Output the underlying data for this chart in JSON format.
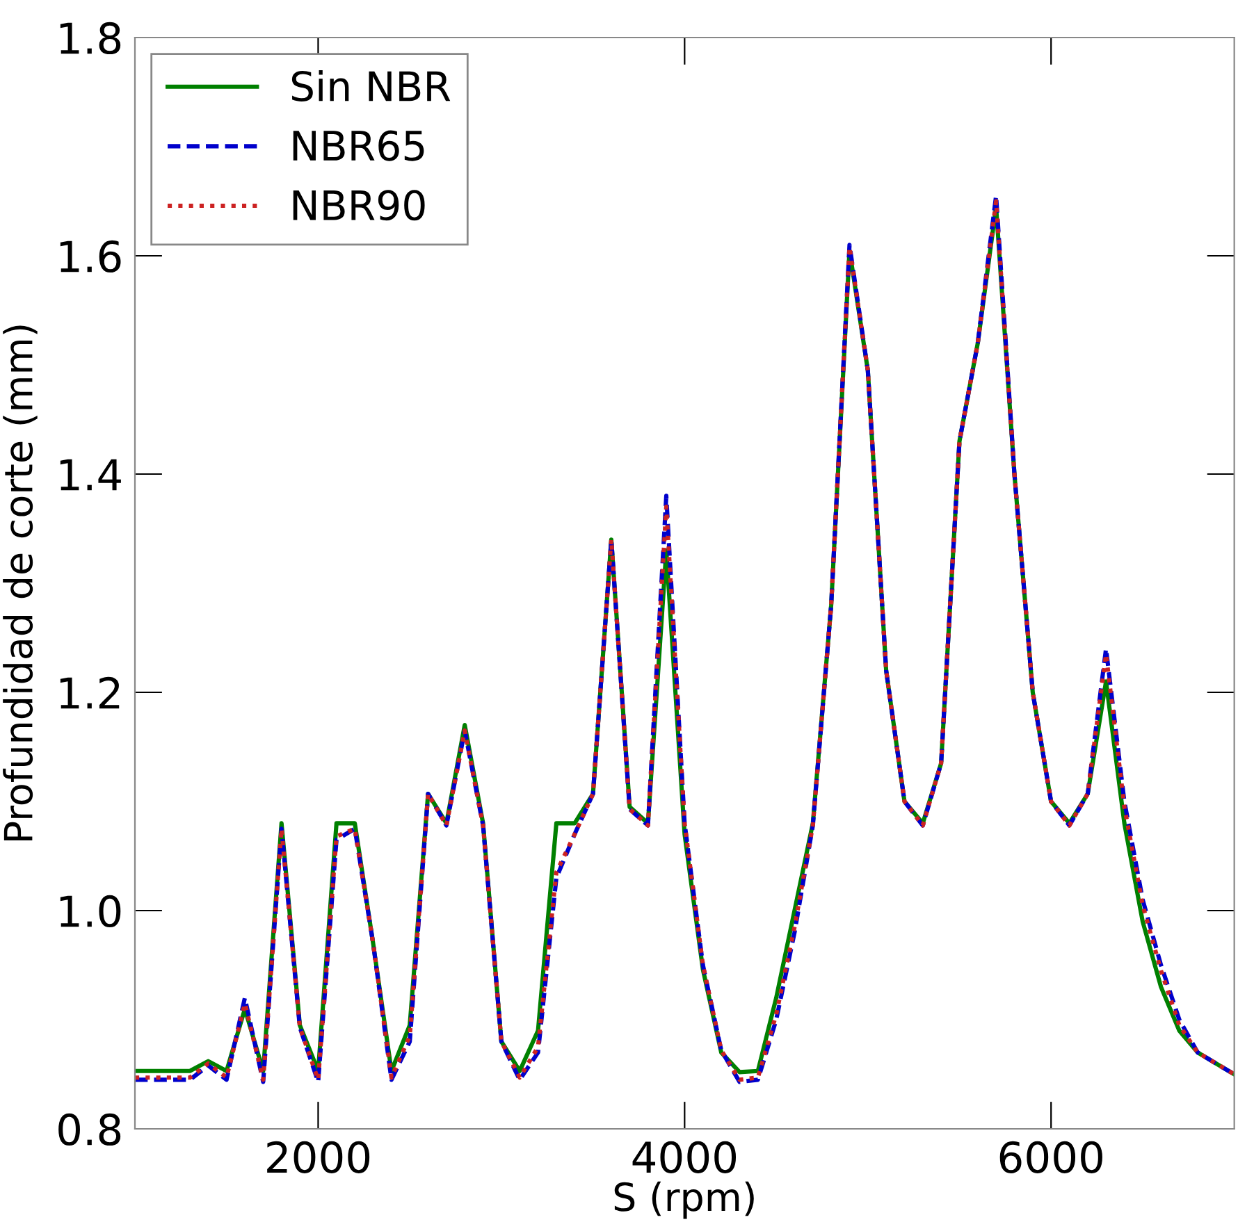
{
  "chart_data": {
    "type": "line",
    "xlabel": "S (rpm)",
    "ylabel": "Profundidad de corte (mm)",
    "x": [
      1000,
      1100,
      1200,
      1300,
      1400,
      1500,
      1600,
      1700,
      1800,
      1900,
      2000,
      2100,
      2200,
      2300,
      2400,
      2500,
      2600,
      2700,
      2800,
      2900,
      3000,
      3100,
      3200,
      3300,
      3400,
      3500,
      3600,
      3700,
      3800,
      3900,
      4000,
      4100,
      4200,
      4300,
      4400,
      4500,
      4600,
      4700,
      4800,
      4900,
      5000,
      5100,
      5200,
      5300,
      5400,
      5500,
      5600,
      5700,
      5800,
      5900,
      6000,
      6100,
      6200,
      6300,
      6400,
      6500,
      6600,
      6700,
      6800,
      6900,
      7000
    ],
    "series": [
      {
        "name": "Sin NBR",
        "color": "#008000",
        "line_style": "solid",
        "values": [
          0.853,
          0.853,
          0.853,
          0.853,
          0.862,
          0.853,
          0.91,
          0.853,
          1.08,
          0.895,
          0.853,
          1.08,
          1.08,
          0.97,
          0.853,
          0.895,
          1.107,
          1.08,
          1.17,
          1.08,
          0.88,
          0.853,
          0.89,
          1.08,
          1.08,
          1.107,
          1.34,
          1.095,
          1.08,
          1.33,
          1.07,
          0.946,
          0.87,
          0.852,
          0.853,
          0.92,
          1.0,
          1.08,
          1.28,
          1.605,
          1.495,
          1.22,
          1.1,
          1.08,
          1.135,
          1.43,
          1.52,
          1.645,
          1.4,
          1.2,
          1.1,
          1.08,
          1.107,
          1.21,
          1.08,
          0.99,
          0.93,
          0.89,
          0.87,
          0.86,
          0.85
        ]
      },
      {
        "name": "NBR65",
        "color": "#0000cc",
        "line_style": "dashed",
        "values": [
          0.845,
          0.845,
          0.845,
          0.845,
          0.858,
          0.845,
          0.92,
          0.843,
          1.075,
          0.893,
          0.843,
          1.065,
          1.075,
          0.97,
          0.845,
          0.88,
          1.107,
          1.078,
          1.165,
          1.078,
          0.88,
          0.845,
          0.87,
          1.03,
          1.07,
          1.107,
          1.34,
          1.093,
          1.078,
          1.38,
          1.08,
          0.95,
          0.872,
          0.843,
          0.845,
          0.9,
          0.98,
          1.078,
          1.28,
          1.61,
          1.495,
          1.22,
          1.1,
          1.078,
          1.135,
          1.43,
          1.52,
          1.655,
          1.4,
          1.2,
          1.1,
          1.078,
          1.107,
          1.24,
          1.1,
          1.01,
          0.95,
          0.9,
          0.87,
          0.86,
          0.85
        ]
      },
      {
        "name": "NBR90",
        "color": "#cc2222",
        "line_style": "dotted",
        "values": [
          0.847,
          0.847,
          0.847,
          0.847,
          0.86,
          0.847,
          0.915,
          0.845,
          1.075,
          0.893,
          0.845,
          1.068,
          1.075,
          0.97,
          0.847,
          0.885,
          1.107,
          1.078,
          1.165,
          1.078,
          0.88,
          0.847,
          0.875,
          1.035,
          1.07,
          1.107,
          1.34,
          1.093,
          1.078,
          1.37,
          1.08,
          0.95,
          0.872,
          0.845,
          0.847,
          0.905,
          0.985,
          1.078,
          1.28,
          1.608,
          1.495,
          1.22,
          1.1,
          1.078,
          1.135,
          1.43,
          1.52,
          1.65,
          1.4,
          1.2,
          1.1,
          1.078,
          1.107,
          1.235,
          1.095,
          1.005,
          0.945,
          0.895,
          0.87,
          0.86,
          0.85
        ]
      }
    ],
    "xlim": [
      1000,
      7000
    ],
    "ylim": [
      0.8,
      1.8
    ],
    "xticks": [
      2000,
      4000,
      6000
    ],
    "yticks": [
      {
        "value": 0.8,
        "label": "0.8"
      },
      {
        "value": 1.0,
        "label": "1.0"
      },
      {
        "value": 1.2,
        "label": "1.2"
      },
      {
        "value": 1.4,
        "label": "1.4"
      },
      {
        "value": 1.6,
        "label": "1.6"
      },
      {
        "value": 1.8,
        "label": "1.8"
      }
    ],
    "grid": false,
    "legend": "top left",
    "marker": "none"
  }
}
